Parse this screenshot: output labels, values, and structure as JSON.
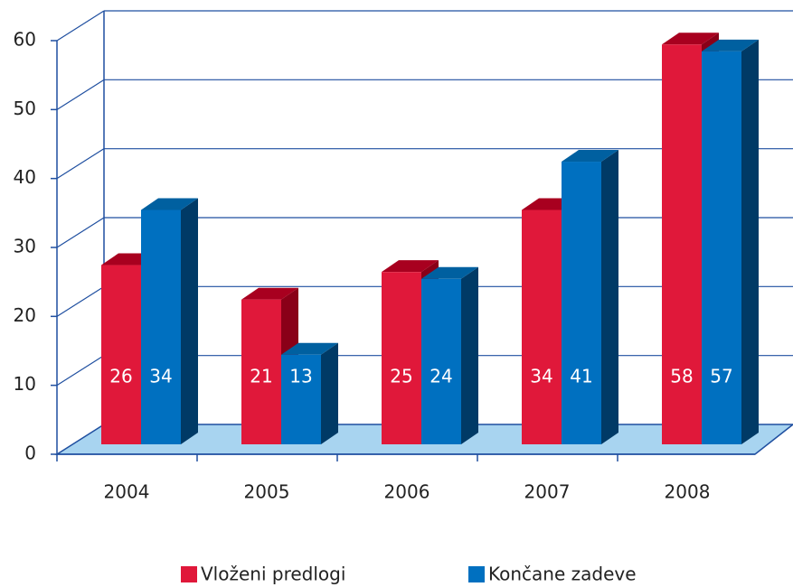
{
  "chart_data": {
    "type": "bar3d",
    "categories": [
      "2004",
      "2005",
      "2006",
      "2007",
      "2008"
    ],
    "series": [
      {
        "name": "Vloženi predlogi",
        "color": "#e0183a",
        "values": [
          26,
          21,
          25,
          34,
          58
        ]
      },
      {
        "name": "Končane zadeve",
        "color": "#0070c0",
        "values": [
          34,
          13,
          24,
          41,
          57
        ]
      }
    ],
    "ylim": [
      0,
      60
    ],
    "yticks": [
      0,
      10,
      20,
      30,
      40,
      50,
      60
    ],
    "grid": true
  }
}
